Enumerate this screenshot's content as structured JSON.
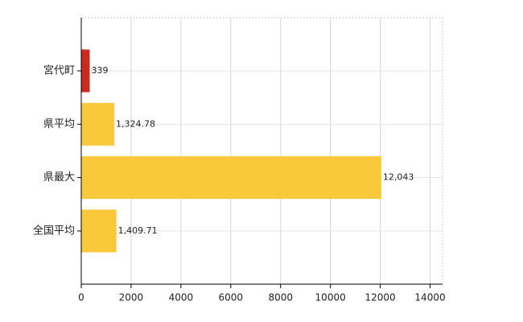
{
  "chart_data": {
    "type": "barh",
    "categories": [
      "宮代町",
      "県平均",
      "県最大",
      "全国平均"
    ],
    "values": [
      339,
      1324.78,
      12043,
      1409.71
    ],
    "value_labels": [
      "339",
      "1,324.78",
      "12,043",
      "1,409.71"
    ],
    "colors": [
      "#cc2a1e",
      "#f9c93b",
      "#f9c93b",
      "#f9c93b"
    ],
    "xlim": [
      0,
      14500
    ],
    "xticks": [
      0,
      2000,
      4000,
      6000,
      8000,
      10000,
      12000,
      14000
    ],
    "grid": true
  }
}
